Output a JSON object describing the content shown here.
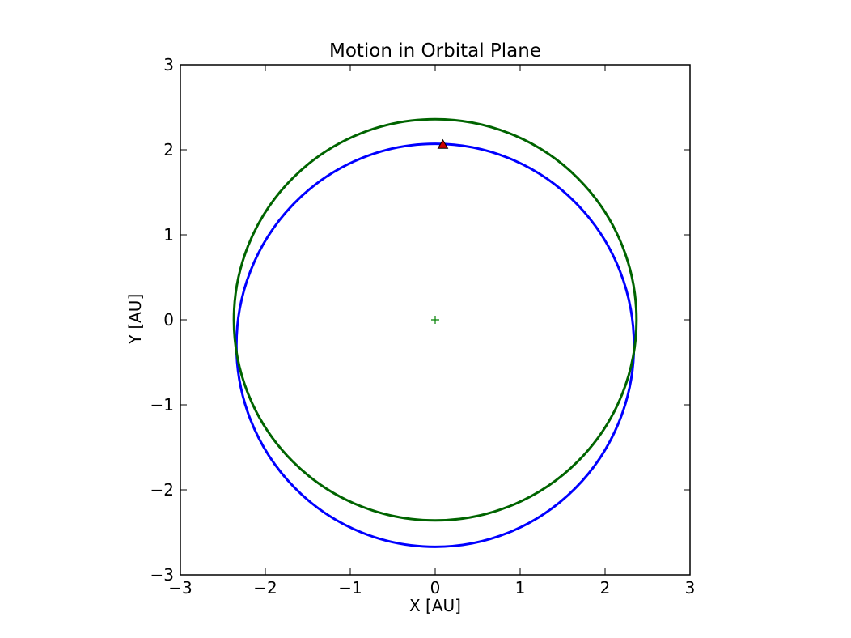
{
  "chart_data": {
    "type": "line",
    "title": "Motion in Orbital Plane",
    "xlabel": "X [AU]",
    "ylabel": "Y [AU]",
    "xlim": [
      -3,
      3
    ],
    "ylim": [
      -3,
      3
    ],
    "xticks": [
      -3,
      -2,
      -1,
      0,
      1,
      2,
      3
    ],
    "yticks": [
      -3,
      -2,
      -1,
      0,
      1,
      2,
      3
    ],
    "xtick_labels": [
      "−3",
      "−2",
      "−1",
      "0",
      "1",
      "2",
      "3"
    ],
    "ytick_labels": [
      "−3",
      "−2",
      "−1",
      "0",
      "1",
      "2",
      "3"
    ],
    "grid": false,
    "legend": "none",
    "series": [
      {
        "kind": "ellipse",
        "color": "#0000ff",
        "center": [
          0,
          -0.3
        ],
        "semi_axes": [
          2.34,
          2.37
        ],
        "notable_points": [
          [
            -2.35,
            -0.2
          ],
          [
            2.33,
            -0.2
          ],
          [
            0,
            2.07
          ],
          [
            0,
            -2.67
          ]
        ]
      },
      {
        "kind": "ellipse",
        "color": "#006400",
        "center": [
          0,
          0
        ],
        "semi_axes": [
          2.37,
          2.36
        ],
        "notable_points": [
          [
            -2.37,
            0
          ],
          [
            2.37,
            0
          ],
          [
            0,
            2.36
          ],
          [
            0,
            -2.36
          ]
        ]
      }
    ],
    "markers": [
      {
        "kind": "triangle",
        "color": "#cc0000",
        "x": 0.09,
        "y": 2.06
      },
      {
        "kind": "plus",
        "color": "#008000",
        "x": 0,
        "y": 0
      }
    ]
  }
}
